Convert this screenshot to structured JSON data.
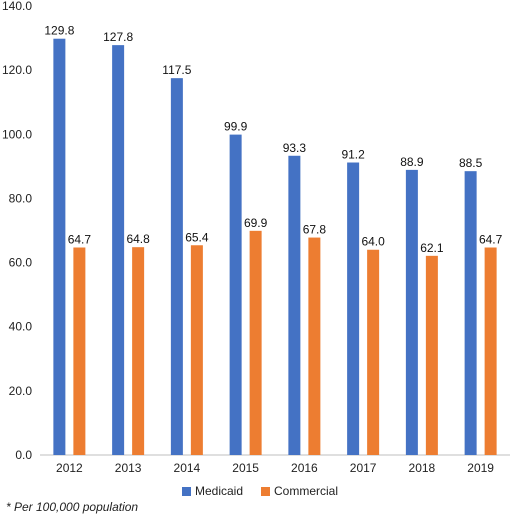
{
  "chart_data": {
    "type": "bar",
    "categories": [
      "2012",
      "2013",
      "2014",
      "2015",
      "2016",
      "2017",
      "2018",
      "2019"
    ],
    "series": [
      {
        "name": "Medicaid",
        "color": "#4472C4",
        "values": [
          129.8,
          127.8,
          117.5,
          99.9,
          93.3,
          91.2,
          88.9,
          88.5
        ]
      },
      {
        "name": "Commercial",
        "color": "#ED7D31",
        "values": [
          64.7,
          64.8,
          65.4,
          69.9,
          67.8,
          64.0,
          62.1,
          64.7
        ]
      }
    ],
    "ylim": [
      0,
      140
    ],
    "yticks": [
      "0.0",
      "20.0",
      "40.0",
      "60.0",
      "80.0",
      "100.0",
      "120.0",
      "140.0"
    ],
    "legend_position": "bottom",
    "footnote": "* Per 100,000 population"
  }
}
